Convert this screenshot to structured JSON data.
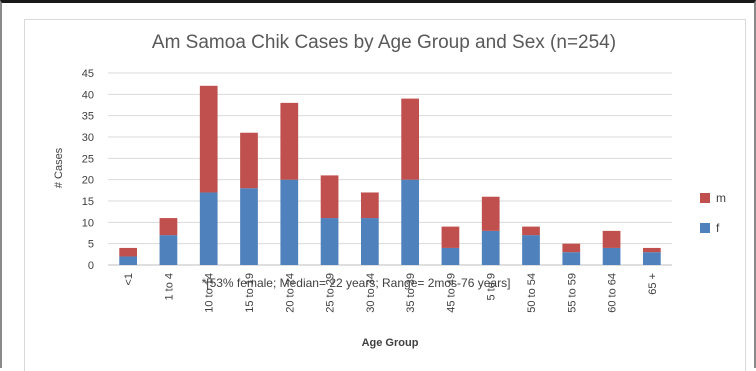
{
  "chart_data": {
    "type": "bar",
    "stacked": true,
    "title": "Am Samoa Chik Cases by Age Group and Sex (n=254)",
    "xlabel": "Age Group",
    "ylabel": "# Cases",
    "ylim": [
      0,
      45
    ],
    "yticks": [
      "0",
      "5",
      "10",
      "15",
      "20",
      "25",
      "30",
      "35",
      "40",
      "45"
    ],
    "grid": true,
    "legend_position": "right",
    "categories": [
      "<1",
      "1 to 4",
      "10 to 14",
      "15 to 19",
      "20 to 24",
      "25 to 29",
      "30 to 34",
      "35 to 39",
      "45 to 49",
      "5 to 9",
      "50 to 54",
      "55 to 59",
      "60 to 64",
      "65 +"
    ],
    "series": [
      {
        "name": "f",
        "color": "#4f81bd",
        "values": [
          2,
          7,
          17,
          18,
          20,
          11,
          11,
          20,
          4,
          8,
          7,
          3,
          4,
          3
        ]
      },
      {
        "name": "m",
        "color": "#c0504d",
        "values": [
          2,
          4,
          25,
          13,
          18,
          10,
          6,
          19,
          5,
          8,
          2,
          2,
          4,
          1
        ]
      }
    ],
    "annotation": "*[53% female; Median= 22 years; Range= 2mos-76 years]"
  }
}
